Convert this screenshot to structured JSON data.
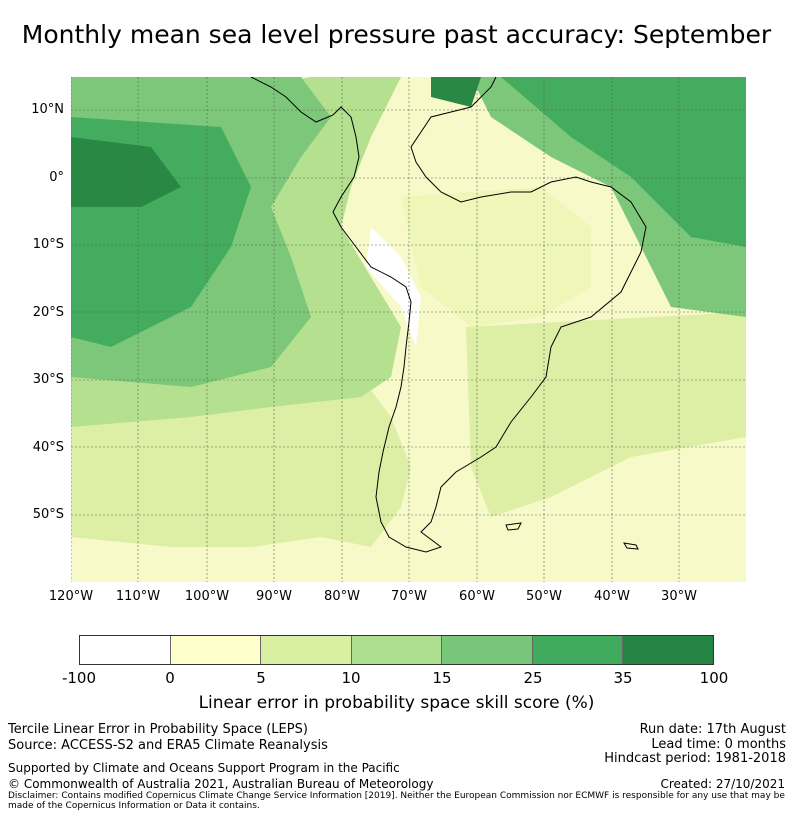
{
  "title": "Monthly mean sea level pressure past accuracy: September",
  "map": {
    "lat_labels": [
      "10°N",
      "0°",
      "10°S",
      "20°S",
      "30°S",
      "40°S",
      "50°S"
    ],
    "lon_labels": [
      "120°W",
      "110°W",
      "100°W",
      "90°W",
      "80°W",
      "70°W",
      "60°W",
      "50°W",
      "40°W",
      "30°W"
    ]
  },
  "colorbar": {
    "colors": [
      "#ffffff",
      "#ffffcc",
      "#d9f0a3",
      "#addd8e",
      "#78c679",
      "#41ab5d",
      "#238443"
    ],
    "ticks": [
      "-100",
      "0",
      "5",
      "10",
      "15",
      "25",
      "35",
      "100"
    ],
    "label": "Linear error in probability space skill score (%)"
  },
  "footer": {
    "method": "Tercile Linear Error in Probability Space (LEPS)",
    "source": "Source: ACCESS-S2 and ERA5 Climate Reanalysis",
    "support": "Supported by Climate and Oceans Support Program in the Pacific",
    "copyright": "© Commonwealth of Australia 2021, Australian Bureau of Meteorology",
    "disclaimer": "Disclaimer: Contains modified Copernicus Climate Change Service Information [2019]. Neither the European Commission nor ECMWF is responsible for any use that may be made of the Copernicus Information or Data it contains.",
    "run_date": "Run date: 17th August",
    "lead_time": "Lead time: 0 months",
    "hindcast": "Hindcast period: 1981-2018",
    "created": "Created: 27/10/2021"
  }
}
